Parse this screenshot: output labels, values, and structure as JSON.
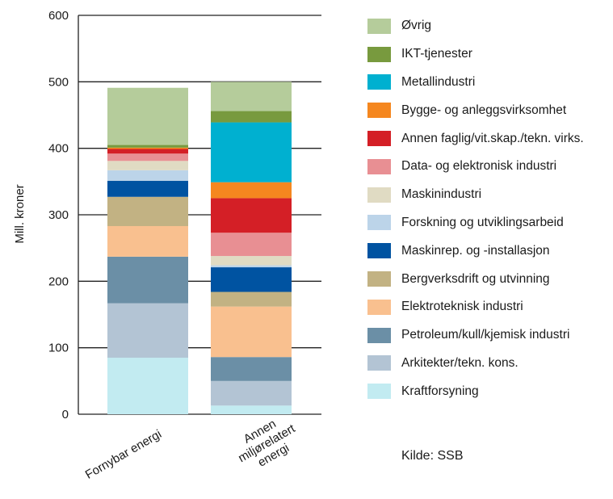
{
  "chart_data": {
    "type": "bar",
    "stacked": true,
    "ylabel": "Mill. kroner",
    "ylim": [
      0,
      600
    ],
    "yticks": [
      0,
      100,
      200,
      300,
      400,
      500,
      600
    ],
    "grid": true,
    "legend_position": "right",
    "source": "Kilde: SSB",
    "categories": [
      [
        "Fornybar energi"
      ],
      [
        "Annen",
        "miljørelatert",
        "energi"
      ]
    ],
    "series": [
      {
        "name": "Kraftforsyning",
        "color": "#c2ebf1",
        "values": [
          85,
          13
        ]
      },
      {
        "name": "Arkitekter/tekn. kons.",
        "color": "#b3c4d4",
        "values": [
          82,
          37
        ]
      },
      {
        "name": "Petroleum/kull/kjemisk industri",
        "color": "#6b8fa6",
        "values": [
          70,
          36
        ]
      },
      {
        "name": "Elektroteknisk industri",
        "color": "#f9c08f",
        "values": [
          46,
          76
        ]
      },
      {
        "name": "Bergverksdrift og utvinning",
        "color": "#c2b283",
        "values": [
          44,
          22
        ]
      },
      {
        "name": "Maskinrep. og -installasjon",
        "color": "#0053a1",
        "values": [
          24,
          37
        ]
      },
      {
        "name": "Forskning og utviklingsarbeid",
        "color": "#bcd4e9",
        "values": [
          16,
          3
        ]
      },
      {
        "name": "Maskinindustri",
        "color": "#e0dbc3",
        "values": [
          14,
          14
        ]
      },
      {
        "name": "Data- og elektronisk industri",
        "color": "#e88f93",
        "values": [
          11,
          35
        ]
      },
      {
        "name": "Annen faglig/vit.skap./tekn. virks.",
        "color": "#d41f26",
        "values": [
          7,
          52
        ]
      },
      {
        "name": "Bygge- og anleggsvirksomhet",
        "color": "#f5871f",
        "values": [
          2,
          24
        ]
      },
      {
        "name": "Metallindustri",
        "color": "#00b0d0",
        "values": [
          0,
          90
        ]
      },
      {
        "name": "IKT-tjenester",
        "color": "#789a3e",
        "values": [
          4,
          17
        ]
      },
      {
        "name": "Øvrig",
        "color": "#b5cc9b",
        "values": [
          86,
          44
        ]
      }
    ]
  }
}
